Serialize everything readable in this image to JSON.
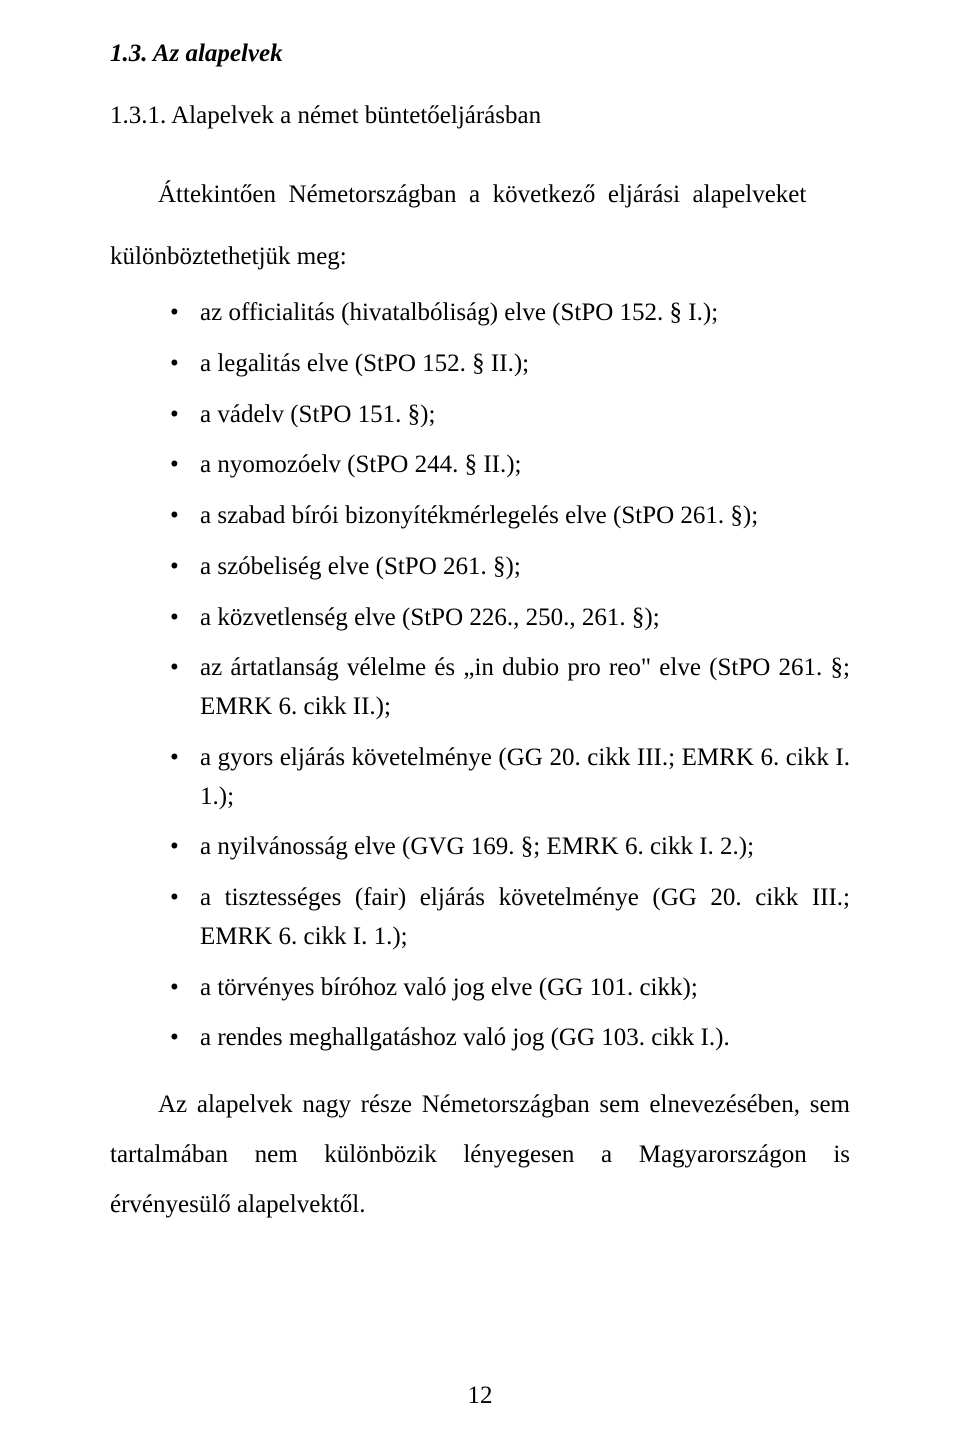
{
  "heading_13": "1.3. Az alapelvek",
  "heading_131": "1.3.1. Alapelvek a német büntetőeljárásban",
  "intro_line1": "Áttekintően  Németországban  a  következő  eljárási  alapelveket",
  "intro_line2": "különböztethetjük meg:",
  "bullets": [
    "az officialitás (hivatalbóliság) elve (StPO 152. § I.);",
    "a legalitás elve (StPO 152. § II.);",
    "a vádelv (StPO 151. §);",
    "a nyomozóelv (StPO 244. § II.);",
    "a szabad bírói bizonyítékmérlegelés elve (StPO 261. §);",
    "a szóbeliség elve (StPO 261. §);",
    "a közvetlenség elve (StPO 226., 250., 261. §);",
    "az ártatlanság vélelme és „in dubio pro reo\" elve (StPO 261. §; EMRK 6. cikk II.);",
    "a gyors eljárás követelménye (GG 20. cikk III.; EMRK 6. cikk I. 1.);",
    "a nyilvánosság elve (GVG 169. §; EMRK 6. cikk I. 2.);",
    "a tisztességes (fair) eljárás követelménye (GG 20. cikk III.; EMRK 6. cikk I. 1.);",
    "a törvényes bíróhoz való jog elve (GG 101. cikk);",
    "a rendes meghallgatáshoz való jog (GG 103. cikk I.)."
  ],
  "closing": "Az alapelvek nagy része Németországban sem elnevezésében, sem tartalmában nem különbözik lényegesen a Magyarországon is érvényesülő alapelvektől.",
  "page_number": "12"
}
